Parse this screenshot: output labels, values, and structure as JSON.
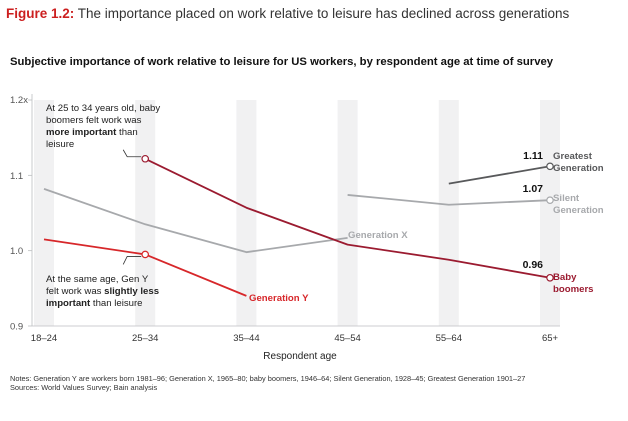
{
  "figure": {
    "number": "Figure 1.2:",
    "title": "The importance placed on work relative to leisure has declined across generations"
  },
  "chart_data": {
    "type": "line",
    "title": "Subjective importance of work relative to leisure for US workers, by respondent age at time of survey",
    "xlabel": "Respondent age",
    "ylabel": "",
    "categories": [
      "18–24",
      "25–34",
      "35–44",
      "45–54",
      "55–64",
      "65+"
    ],
    "y_ticks": [
      "0.9",
      "1.0",
      "1.1",
      "1.2x"
    ],
    "y_tick_values": [
      0.9,
      1.0,
      1.1,
      1.2
    ],
    "ylim": [
      0.9,
      1.2
    ],
    "grid": false,
    "series": [
      {
        "name": "Generation Y",
        "color": "#d7272a",
        "x": [
          "18–24",
          "25–34",
          "35–44"
        ],
        "values": [
          1.015,
          0.995,
          0.94
        ]
      },
      {
        "name": "Generation X",
        "color": "#a7a9ac",
        "x": [
          "18–24",
          "25–34",
          "35–44",
          "45–54"
        ],
        "values": [
          1.082,
          1.035,
          0.998,
          1.017
        ]
      },
      {
        "name": "Baby boomers",
        "color": "#9b1b30",
        "x": [
          "25–34",
          "35–44",
          "45–54",
          "55–64",
          "65+"
        ],
        "values": [
          1.122,
          1.057,
          1.008,
          0.988,
          0.964
        ]
      },
      {
        "name": "Silent Generation",
        "color": "#a7a9ac",
        "x": [
          "45–54",
          "55–64",
          "65+"
        ],
        "values": [
          1.074,
          1.061,
          1.067
        ]
      },
      {
        "name": "Greatest Generation",
        "color": "#58595b",
        "x": [
          "55–64",
          "65+"
        ],
        "values": [
          1.089,
          1.112
        ]
      }
    ],
    "value_labels": [
      {
        "series": "Greatest Generation",
        "text": "1.11"
      },
      {
        "series": "Silent Generation",
        "text": "1.07"
      },
      {
        "series": "Baby boomers",
        "text": "0.96"
      }
    ],
    "annotations": {
      "boomers": {
        "part1": "At 25 to 34 years old, baby boomers felt work was ",
        "bold": "more important",
        "part2": " than leisure"
      },
      "gen_y": {
        "part1": "At the same age, Gen Y felt work was ",
        "bold": "slightly less important",
        "part2": " than leisure"
      }
    }
  },
  "notes": {
    "line1": "Notes: Generation Y are workers born 1981–96; Generation X, 1965–80; baby boomers, 1946–64; Silent Generation, 1928–45; Greatest Generation 1901–27",
    "line2": "Sources: World Values Survey; Bain analysis"
  }
}
